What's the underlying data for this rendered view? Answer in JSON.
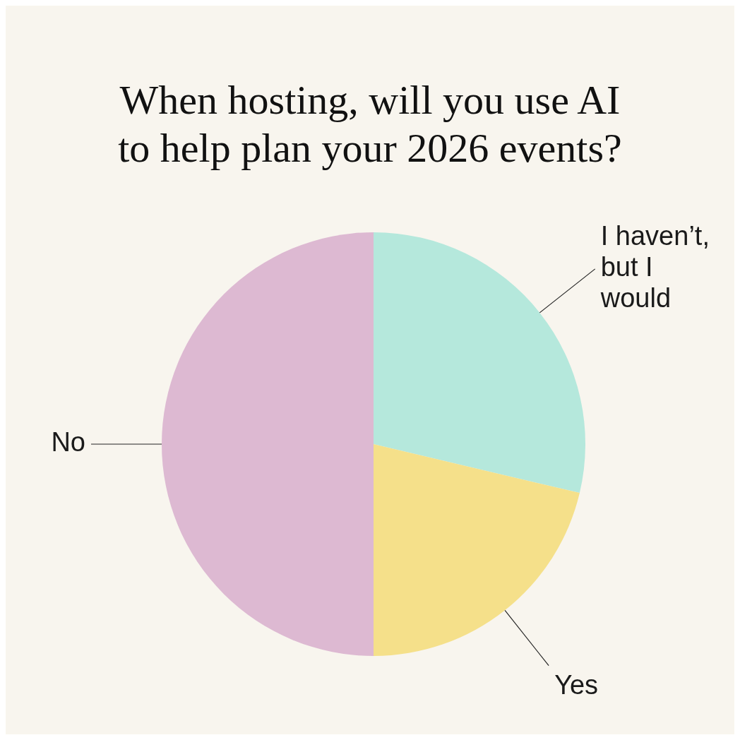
{
  "chart_data": {
    "type": "pie",
    "title": "When hosting, will you use AI to help plan your 2026 events?",
    "categories": [
      "I haven’t, but I would",
      "Yes",
      "No"
    ],
    "values": [
      28.7,
      21.3,
      50
    ],
    "colors": [
      "#b5e8dc",
      "#f5e08a",
      "#ddb9d2"
    ],
    "legend": false
  }
}
